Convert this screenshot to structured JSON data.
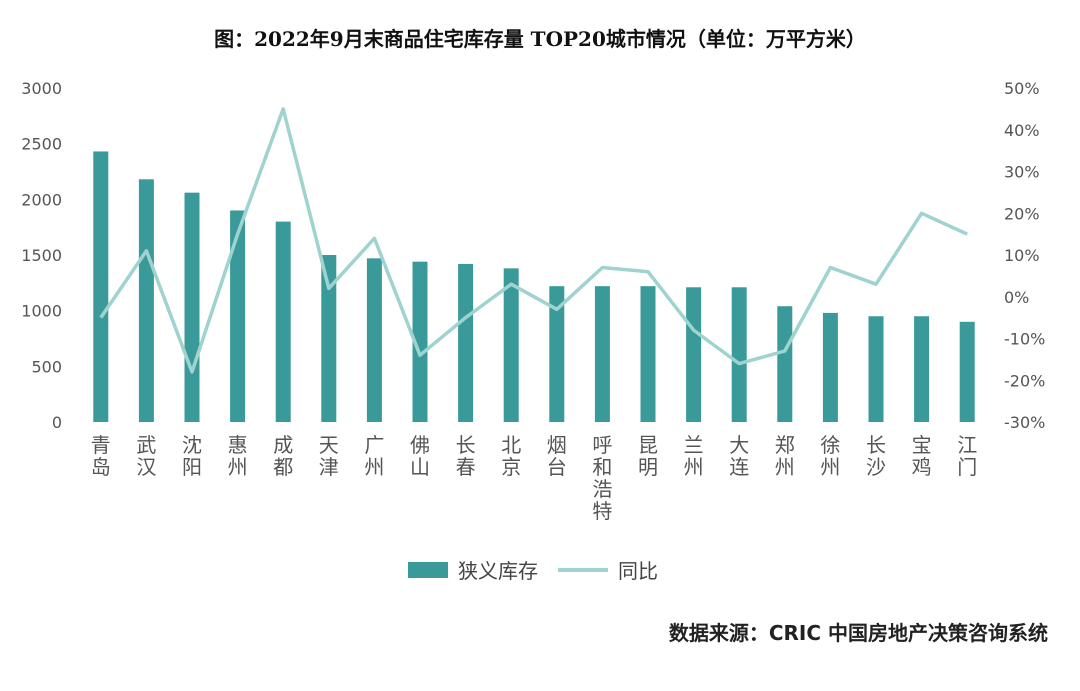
{
  "chart_data": {
    "type": "bar",
    "title": "图：2022年9月末商品住宅库存量 TOP20城市情况（单位：万平方米）",
    "categories": [
      "青岛",
      "武汉",
      "沈阳",
      "惠州",
      "成都",
      "天津",
      "广州",
      "佛山",
      "长春",
      "北京",
      "烟台",
      "呼和浩特",
      "昆明",
      "兰州",
      "大连",
      "郑州",
      "徐州",
      "长沙",
      "宝鸡",
      "江门"
    ],
    "series": [
      {
        "name": "狭义库存",
        "type": "bar",
        "axis": "left",
        "color": "#3a9a9a",
        "values": [
          2430,
          2180,
          2060,
          1900,
          1800,
          1500,
          1470,
          1440,
          1420,
          1380,
          1220,
          1220,
          1220,
          1210,
          1210,
          1040,
          980,
          950,
          950,
          900
        ]
      },
      {
        "name": "同比",
        "type": "line",
        "axis": "right",
        "color": "#9fd3cf",
        "values": [
          -5,
          11,
          -18,
          15,
          45,
          2,
          14,
          -14,
          -5,
          3,
          -3,
          7,
          6,
          -8,
          -16,
          -13,
          7,
          3,
          20,
          15
        ]
      }
    ],
    "y_left": {
      "min": 0,
      "max": 3000,
      "ticks": [
        "0",
        "500",
        "1000",
        "1500",
        "2000",
        "2500",
        "3000"
      ]
    },
    "y_right": {
      "min": -30,
      "max": 50,
      "ticks": [
        "-30%",
        "-20%",
        "-10%",
        "0%",
        "10%",
        "20%",
        "30%",
        "40%",
        "50%"
      ]
    },
    "grid": false,
    "legend_position": "bottom"
  },
  "legend": {
    "bar_label": "狭义库存",
    "line_label": "同比"
  },
  "source": "数据来源：CRIC 中国房地产决策咨询系统"
}
